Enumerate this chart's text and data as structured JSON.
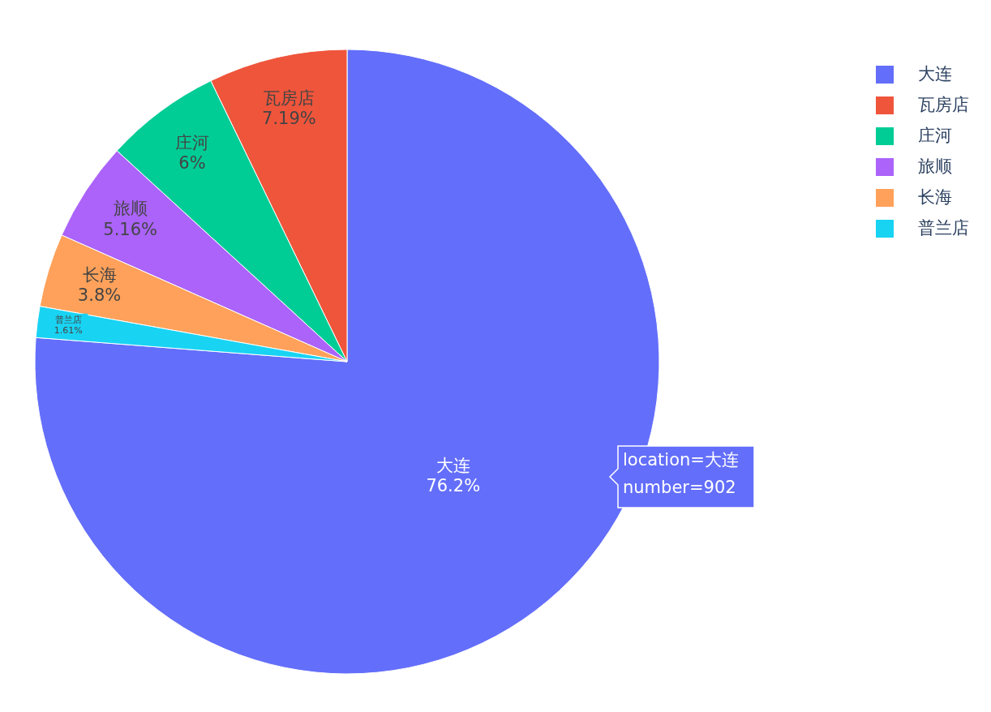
{
  "chart_data": {
    "type": "pie",
    "categories": [
      "大连",
      "瓦房店",
      "庄河",
      "旅顺",
      "长海",
      "普兰店"
    ],
    "values": [
      76.2,
      7.19,
      6,
      5.16,
      3.8,
      1.61
    ],
    "value_labels": [
      "76.2%",
      "7.19%",
      "6%",
      "5.16%",
      "3.8%",
      "1.61%"
    ],
    "colors": [
      "#636efa",
      "#ef553b",
      "#00cc96",
      "#ab63fa",
      "#ffa15a",
      "#19d3f3"
    ],
    "annotations": [
      "location=大连\nnumber=902"
    ],
    "legend": "top right"
  }
}
